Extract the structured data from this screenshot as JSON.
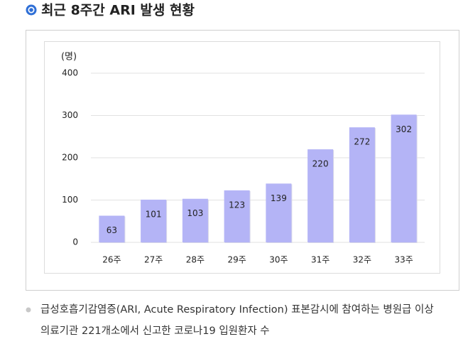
{
  "header": {
    "title": "최근 8주간 ARI 발생 현황"
  },
  "chart_data": {
    "type": "bar",
    "y_label": "(명)",
    "categories": [
      "26주",
      "27주",
      "28주",
      "29주",
      "30주",
      "31주",
      "32주",
      "33주"
    ],
    "values": [
      63,
      101,
      103,
      123,
      139,
      220,
      272,
      302
    ],
    "color": "#b4b4f6",
    "ylim": [
      0,
      400
    ],
    "yticks": [
      0,
      100,
      200,
      300,
      400
    ],
    "grid": true
  },
  "footnote": {
    "lines": [
      "급성호흡기감염증(ARI, Acute Respiratory Infection) 표본감시에 참여하는 병원급 이상",
      "의료기관 221개소에서 신고한 코로나19 입원환자 수"
    ]
  }
}
